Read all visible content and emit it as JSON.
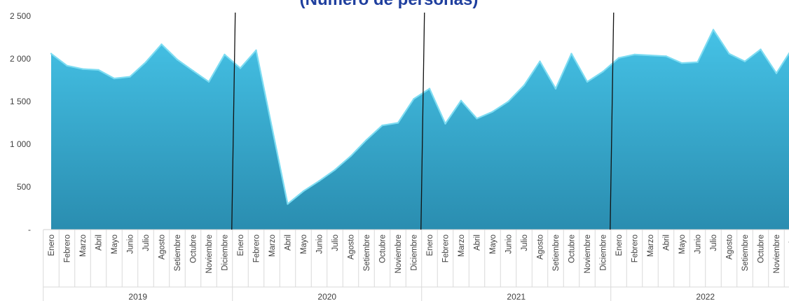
{
  "chart_data": {
    "type": "area",
    "title": "(Número de personas)",
    "ylim": [
      0,
      2500
    ],
    "y_ticks": [
      {
        "value": 0,
        "label": "-"
      },
      {
        "value": 500,
        "label": "500"
      },
      {
        "value": 1000,
        "label": "1 000"
      },
      {
        "value": 1500,
        "label": "1 500"
      },
      {
        "value": 2000,
        "label": "2 000"
      },
      {
        "value": 2500,
        "label": "2 500"
      }
    ],
    "colors": {
      "fill_top": "#45c2e6",
      "fill_bottom": "#2a8db0",
      "line": "#7ddcf2",
      "title": "#1f3f9e"
    },
    "years": [
      {
        "label": "2019",
        "months": [
          "Enero",
          "Febrero",
          "Marzo",
          "Abril",
          "Mayo",
          "Junio",
          "Julio",
          "Agosto",
          "Setiembre",
          "Octubre",
          "Noviembre",
          "Diciembre"
        ],
        "values": [
          2060,
          1920,
          1880,
          1870,
          1770,
          1790,
          1960,
          2170,
          1990,
          1860,
          1730,
          2050
        ]
      },
      {
        "label": "2020",
        "months": [
          "Enero",
          "Febrero",
          "Marzo",
          "Abril",
          "Mayo",
          "Junio",
          "Julio",
          "Agosto",
          "Setiembre",
          "Octubre",
          "Noviembre",
          "Diciembre"
        ],
        "values": [
          1890,
          2100,
          1200,
          300,
          450,
          570,
          700,
          860,
          1050,
          1220,
          1250,
          1530
        ]
      },
      {
        "label": "2021",
        "months": [
          "Enero",
          "Febrero",
          "Marzo",
          "Abril",
          "Mayo",
          "Junio",
          "Julio",
          "Agosto",
          "Setiembre",
          "Octubre",
          "Noviembre",
          "Diciembre"
        ],
        "values": [
          1650,
          1240,
          1510,
          1300,
          1380,
          1500,
          1690,
          1970,
          1650,
          2060,
          1730,
          1850
        ]
      },
      {
        "label": "2022",
        "months": [
          "Enero",
          "Febrero",
          "Marzo",
          "Abril",
          "Mayo",
          "Junio",
          "Julio",
          "Agosto",
          "Setiembre",
          "Octubre",
          "Noviembre",
          "Di..."
        ],
        "values": [
          2010,
          2050,
          2040,
          2030,
          1950,
          1960,
          2340,
          2060,
          1970,
          2110,
          1830,
          2120
        ]
      }
    ]
  }
}
